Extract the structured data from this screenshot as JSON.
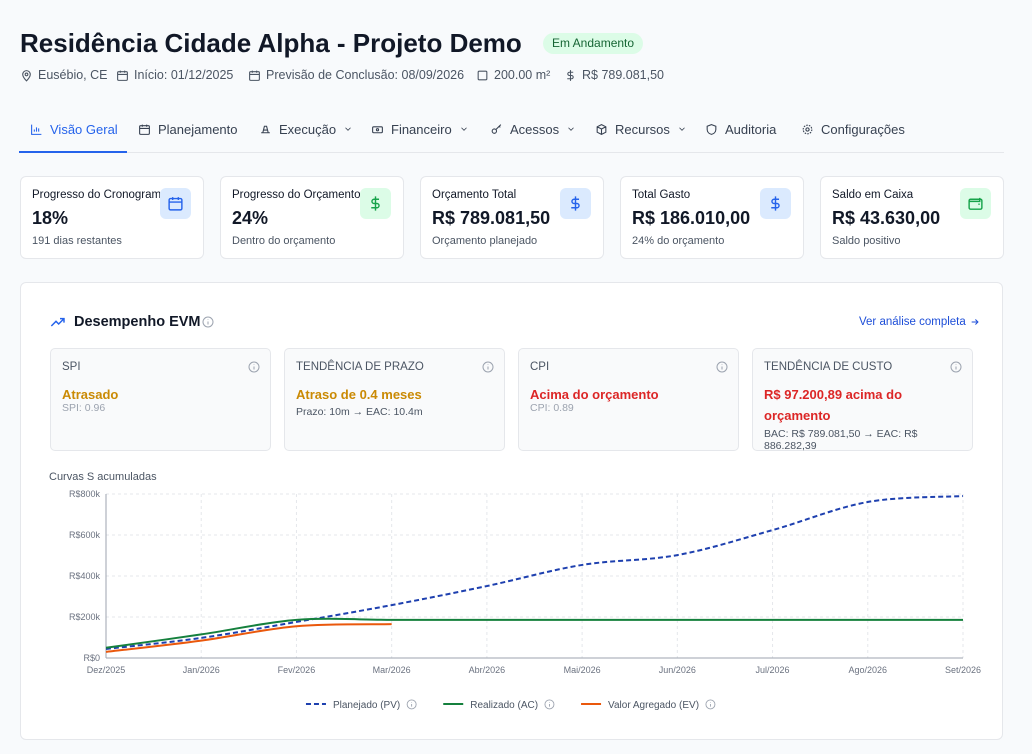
{
  "header": {
    "title": "Residência Cidade Alpha - Projeto Demo",
    "status": "Em Andamento",
    "meta": [
      "Eusébio, CE",
      "Início: 01/12/2025",
      "Previsão de Conclusão: 08/09/2026",
      "200.00 m²",
      "R$ 789.081,50"
    ]
  },
  "tabs": [
    "Visão Geral",
    "Planejamento",
    "Execução",
    "Financeiro",
    "Acessos",
    "Recursos",
    "Auditoria",
    "Configurações"
  ],
  "kpis": [
    {
      "label": "Progresso do Cronograma",
      "value": "18%",
      "note": "191 dias restantes"
    },
    {
      "label": "Progresso do Orçamento",
      "value": "24%",
      "note": "Dentro do orçamento"
    },
    {
      "label": "Orçamento Total",
      "value": "R$ 789.081,50",
      "note": "Orçamento planejado"
    },
    {
      "label": "Total Gasto",
      "value": "R$ 186.010,00",
      "note": "24% do orçamento"
    },
    {
      "label": "Saldo em Caixa",
      "value": "R$ 43.630,00",
      "note": "Saldo positivo"
    }
  ],
  "evm": {
    "title": "Desempenho EVM",
    "link": "Ver análise completa",
    "cards": [
      {
        "label": "SPI",
        "status": "Atrasado",
        "detail": "SPI: 0.96"
      },
      {
        "label": "TENDÊNCIA DE PRAZO",
        "status": "Atraso de 0.4 meses",
        "detail": "Prazo: 10m → EAC: 10.4m"
      },
      {
        "label": "CPI",
        "status": "Acima do orçamento",
        "detail": "CPI: 0.89"
      },
      {
        "label": "TENDÊNCIA DE CUSTO",
        "status": "R$ 97.200,89 acima do orçamento",
        "detail": "BAC: R$ 789.081,50 → EAC: R$ 886.282,39"
      }
    ]
  },
  "chart_data": {
    "type": "line",
    "title": "Curvas S acumuladas",
    "categories": [
      "Dez/2025",
      "Jan/2026",
      "Fev/2026",
      "Mar/2026",
      "Abr/2026",
      "Mai/2026",
      "Jun/2026",
      "Jul/2026",
      "Ago/2026",
      "Set/2026"
    ],
    "series": [
      {
        "name": "Planejado (PV)",
        "color": "#1e40af",
        "dashed": true,
        "values": [
          44000,
          98000,
          176000,
          258000,
          351000,
          454000,
          502000,
          624000,
          761000,
          790000
        ]
      },
      {
        "name": "Realizado (AC)",
        "color": "#15803d",
        "dashed": false,
        "values": [
          50000,
          115000,
          186000,
          186000,
          186000,
          186000,
          186000,
          186000,
          186000,
          186000
        ]
      },
      {
        "name": "Valor Agregado (EV)",
        "color": "#ea580c",
        "dashed": false,
        "values": [
          30000,
          85000,
          155000,
          165000,
          null,
          null,
          null,
          null,
          null,
          null
        ]
      }
    ],
    "ylim": [
      0,
      800000
    ],
    "yticks": [
      {
        "value": 0,
        "label": "R$0"
      },
      {
        "value": 200000,
        "label": "R$200k"
      },
      {
        "value": 400000,
        "label": "R$400k"
      },
      {
        "value": 600000,
        "label": "R$600k"
      },
      {
        "value": 800000,
        "label": "R$800k"
      }
    ],
    "grid": true
  }
}
